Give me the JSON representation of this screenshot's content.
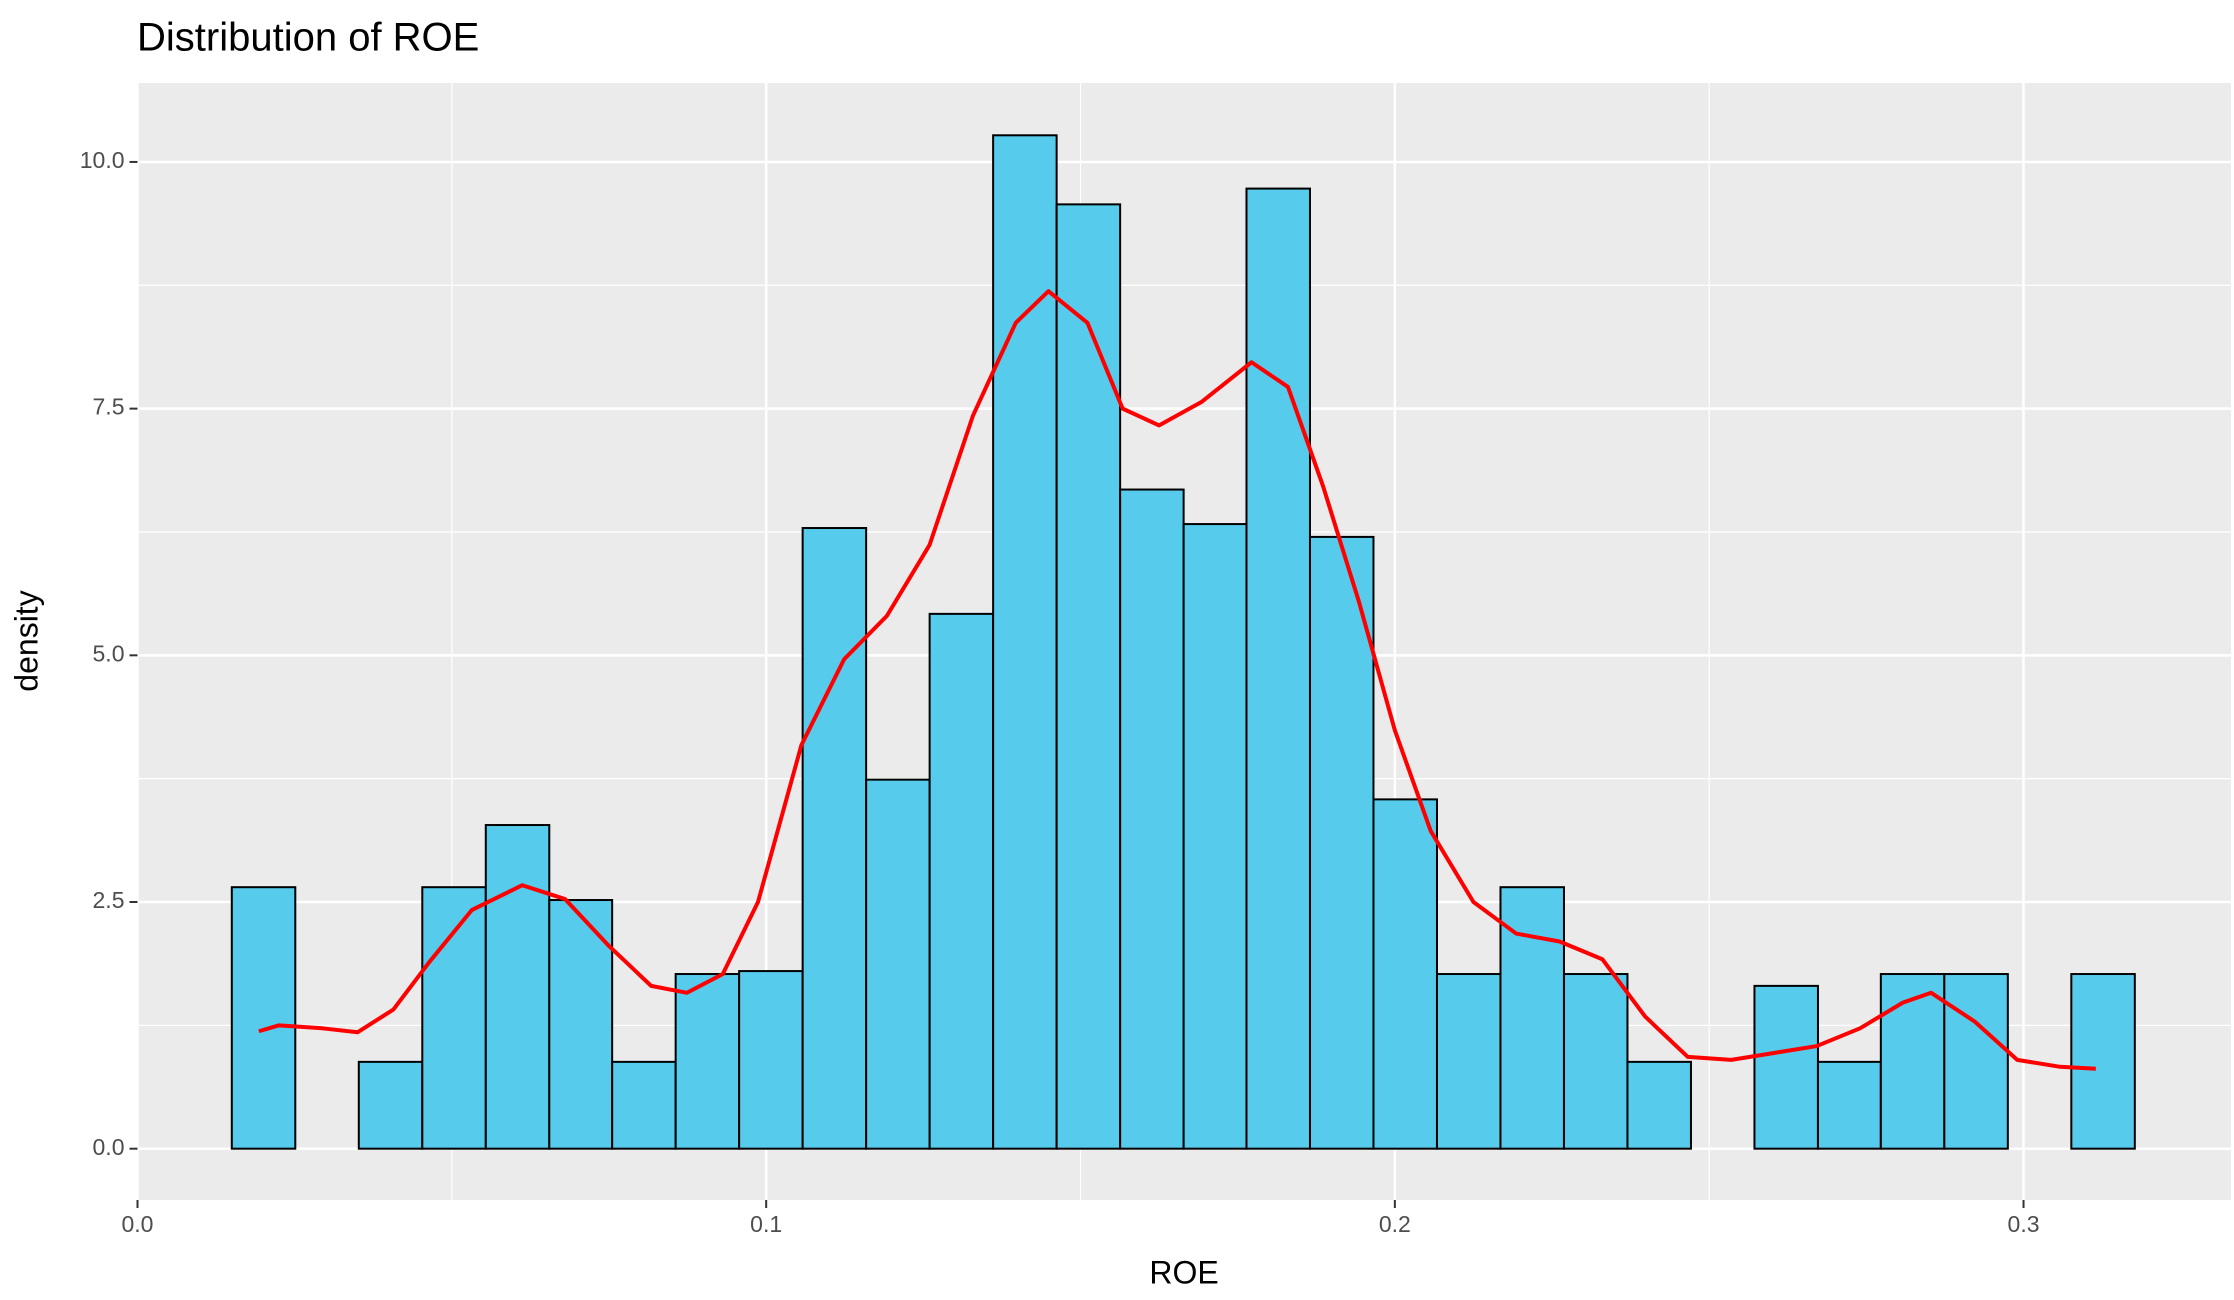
{
  "chart_data": {
    "type": "histogram",
    "title": "Distribution of ROE",
    "xlabel": "ROE",
    "ylabel": "density",
    "bins": [
      0.015,
      0.0251,
      0.0352,
      0.0453,
      0.0554,
      0.0655,
      0.0755,
      0.0856,
      0.0957,
      0.1058,
      0.1159,
      0.126,
      0.1361,
      0.1462,
      0.1563,
      0.1664,
      0.1764,
      0.1865,
      0.1966,
      0.2067,
      0.2168,
      0.2269,
      0.237,
      0.2471,
      0.2572,
      0.2673,
      0.2773,
      0.2874,
      0.2975,
      0.3076,
      0.3177
    ],
    "counts": [
      2.65,
      0,
      0.88,
      2.65,
      3.28,
      2.52,
      0.88,
      1.77,
      1.8,
      6.29,
      3.74,
      5.42,
      10.27,
      9.57,
      6.68,
      6.33,
      9.73,
      6.2,
      3.54,
      1.77,
      2.65,
      1.77,
      0.88,
      0,
      1.65,
      0.88,
      1.77,
      1.77,
      0,
      1.77
    ],
    "color": "#56cbeb",
    "edgecolor": "#000000",
    "density": {
      "color": "#ff0000",
      "x": [
        0.0193,
        0.0225,
        0.0294,
        0.035,
        0.0407,
        0.0464,
        0.0532,
        0.0612,
        0.068,
        0.0749,
        0.0817,
        0.0874,
        0.0931,
        0.0987,
        0.1056,
        0.1124,
        0.1192,
        0.126,
        0.1329,
        0.1397,
        0.1449,
        0.1511,
        0.1567,
        0.1625,
        0.1693,
        0.1772,
        0.183,
        0.1886,
        0.1943,
        0.2,
        0.2057,
        0.2125,
        0.2193,
        0.2262,
        0.233,
        0.2398,
        0.2466,
        0.2535,
        0.2603,
        0.2671,
        0.274,
        0.2808,
        0.2853,
        0.2922,
        0.299,
        0.3058,
        0.3115
      ],
      "values": [
        1.19,
        1.25,
        1.22,
        1.18,
        1.41,
        1.89,
        2.42,
        2.67,
        2.53,
        2.06,
        1.65,
        1.58,
        1.77,
        2.5,
        4.09,
        4.96,
        5.4,
        6.12,
        7.43,
        8.37,
        8.69,
        8.37,
        7.5,
        7.33,
        7.57,
        7.97,
        7.72,
        6.71,
        5.54,
        4.24,
        3.22,
        2.5,
        2.18,
        2.1,
        1.92,
        1.34,
        0.93,
        0.9,
        0.97,
        1.04,
        1.22,
        1.48,
        1.58,
        1.29,
        0.9,
        0.83,
        0.81
      ]
    },
    "xlim": [
      0,
      0.333
    ],
    "ylim": [
      -0.52,
      10.8
    ],
    "xticks": [
      {
        "value": 0,
        "label": "0.0"
      },
      0.1,
      0.2,
      0.3
    ],
    "yticks": [
      {
        "value": 0,
        "label": "0.0"
      },
      2.5,
      {
        "value": 5,
        "label": "5.0"
      },
      7.5,
      {
        "value": 10,
        "label": "10.0"
      }
    ],
    "x_minor_ticks": [
      0.05,
      0.15,
      0.25
    ],
    "y_minor_ticks": [
      1.25,
      3.75,
      6.25,
      8.75
    ],
    "grid": true,
    "background": "#ebebeb"
  }
}
